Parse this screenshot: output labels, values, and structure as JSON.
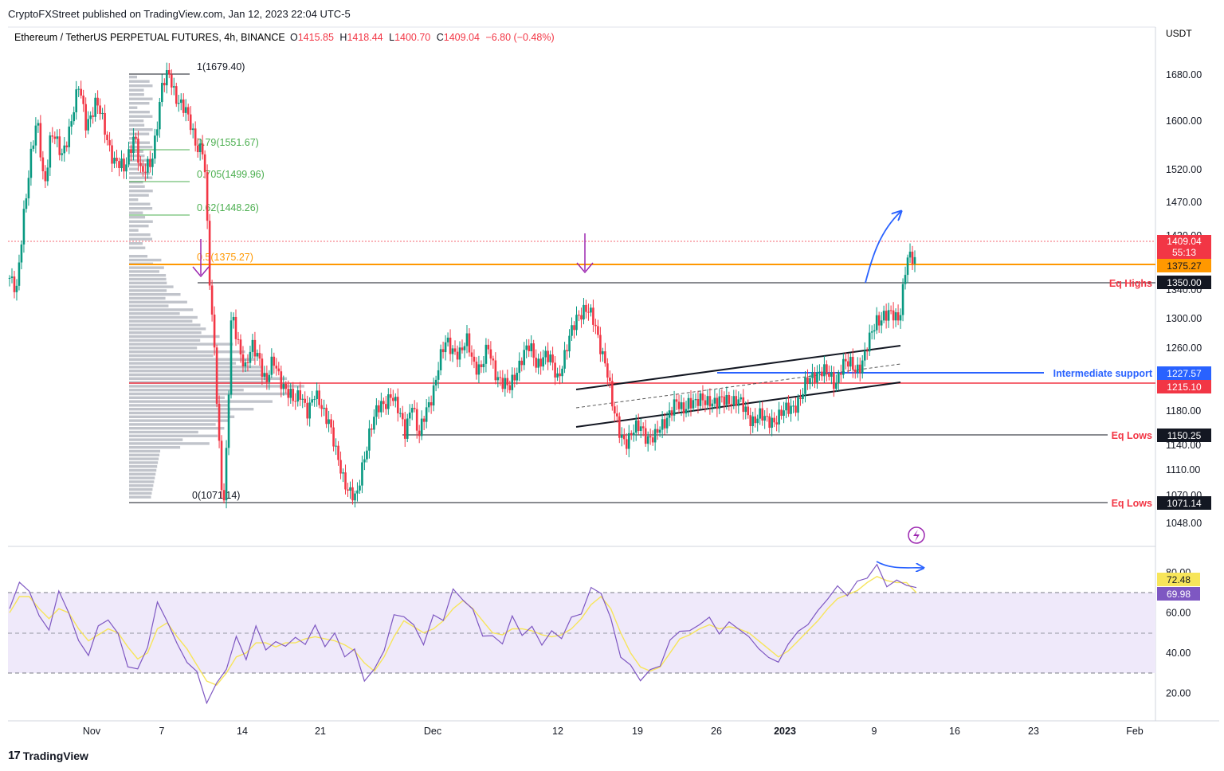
{
  "publisher_line": "CryptoFXStreet published on TradingView.com, Jan 12, 2023 22:04 UTC-5",
  "branding": "TradingView",
  "colors": {
    "up": "#089981",
    "down": "#f23645",
    "fib_green": "#4caf50",
    "fib_half": "#ff9800",
    "support_blue": "#2962ff",
    "rsi_purple": "#7e57c2",
    "rsi_ma": "#f7e55a",
    "rsi_band": "#efe9fa",
    "arrow_purple": "#9c27b0"
  },
  "chart_data": {
    "type": "candlestick",
    "symbol": "Ethereum / TetherUS PERPETUAL FUTURES",
    "timeframe": "4h",
    "exchange": "BINANCE",
    "ohlc": {
      "O": "1415.85",
      "H": "1418.44",
      "L": "1400.70",
      "C": "1409.04",
      "change": "−6.80 (−0.48%)"
    },
    "currency": "USDT",
    "price_ticks": [
      "1680.00",
      "1600.00",
      "1520.00",
      "1470.00",
      "1420.00",
      "1340.00",
      "1300.00",
      "1260.00",
      "1180.00",
      "1140.00",
      "1110.00",
      "1070.00",
      "1048.00"
    ],
    "x_ticks": [
      "Nov",
      "7",
      "14",
      "21",
      "Dec",
      "12",
      "19",
      "26",
      "2023",
      "9",
      "16",
      "23",
      "Feb"
    ],
    "ylim": [
      1040,
      1700
    ],
    "price_path": [
      [
        0,
        1390
      ],
      [
        2,
        1365
      ],
      [
        4,
        1480
      ],
      [
        6,
        1560
      ],
      [
        8,
        1610
      ],
      [
        10,
        1520
      ],
      [
        12,
        1600
      ],
      [
        15,
        1560
      ],
      [
        18,
        1620
      ],
      [
        20,
        1660
      ],
      [
        22,
        1610
      ],
      [
        25,
        1640
      ],
      [
        28,
        1590
      ],
      [
        30,
        1560
      ],
      [
        33,
        1540
      ],
      [
        36,
        1600
      ],
      [
        38,
        1530
      ],
      [
        41,
        1560
      ],
      [
        44,
        1660
      ],
      [
        46,
        1679
      ],
      [
        48,
        1650
      ],
      [
        50,
        1630
      ],
      [
        52,
        1610
      ],
      [
        54,
        1580
      ],
      [
        56,
        1570
      ],
      [
        57,
        1460
      ],
      [
        58,
        1350
      ],
      [
        59,
        1300
      ],
      [
        60,
        1200
      ],
      [
        61,
        1100
      ],
      [
        62,
        1071
      ],
      [
        63,
        1200
      ],
      [
        64,
        1340
      ],
      [
        66,
        1300
      ],
      [
        68,
        1260
      ],
      [
        70,
        1290
      ],
      [
        72,
        1280
      ],
      [
        74,
        1240
      ],
      [
        76,
        1270
      ],
      [
        78,
        1250
      ],
      [
        80,
        1230
      ],
      [
        82,
        1210
      ],
      [
        84,
        1230
      ],
      [
        86,
        1200
      ],
      [
        88,
        1220
      ],
      [
        90,
        1210
      ],
      [
        92,
        1190
      ],
      [
        94,
        1140
      ],
      [
        96,
        1110
      ],
      [
        98,
        1090
      ],
      [
        100,
        1071
      ],
      [
        102,
        1130
      ],
      [
        104,
        1180
      ],
      [
        106,
        1200
      ],
      [
        108,
        1210
      ],
      [
        110,
        1230
      ],
      [
        112,
        1200
      ],
      [
        114,
        1170
      ],
      [
        116,
        1220
      ],
      [
        118,
        1160
      ],
      [
        120,
        1200
      ],
      [
        122,
        1230
      ],
      [
        124,
        1270
      ],
      [
        126,
        1300
      ],
      [
        128,
        1290
      ],
      [
        130,
        1280
      ],
      [
        132,
        1300
      ],
      [
        134,
        1270
      ],
      [
        136,
        1260
      ],
      [
        138,
        1290
      ],
      [
        140,
        1260
      ],
      [
        142,
        1240
      ],
      [
        144,
        1230
      ],
      [
        146,
        1260
      ],
      [
        148,
        1280
      ],
      [
        150,
        1290
      ],
      [
        152,
        1270
      ],
      [
        154,
        1280
      ],
      [
        156,
        1270
      ],
      [
        158,
        1250
      ],
      [
        160,
        1280
      ],
      [
        162,
        1310
      ],
      [
        164,
        1340
      ],
      [
        166,
        1350
      ],
      [
        168,
        1330
      ],
      [
        170,
        1300
      ],
      [
        172,
        1270
      ],
      [
        174,
        1200
      ],
      [
        176,
        1170
      ],
      [
        178,
        1160
      ],
      [
        180,
        1170
      ],
      [
        182,
        1180
      ],
      [
        184,
        1165
      ],
      [
        186,
        1160
      ],
      [
        188,
        1180
      ],
      [
        190,
        1200
      ],
      [
        192,
        1210
      ],
      [
        194,
        1200
      ],
      [
        196,
        1220
      ],
      [
        198,
        1210
      ],
      [
        200,
        1215
      ],
      [
        202,
        1220
      ],
      [
        204,
        1210
      ],
      [
        206,
        1215
      ],
      [
        208,
        1220
      ],
      [
        210,
        1215
      ],
      [
        212,
        1200
      ],
      [
        214,
        1190
      ],
      [
        216,
        1195
      ],
      [
        218,
        1185
      ],
      [
        220,
        1190
      ],
      [
        222,
        1195
      ],
      [
        224,
        1200
      ],
      [
        226,
        1210
      ],
      [
        228,
        1220
      ],
      [
        230,
        1240
      ],
      [
        232,
        1255
      ],
      [
        234,
        1260
      ],
      [
        236,
        1250
      ],
      [
        238,
        1240
      ],
      [
        240,
        1270
      ],
      [
        242,
        1265
      ],
      [
        244,
        1260
      ],
      [
        246,
        1275
      ],
      [
        248,
        1300
      ],
      [
        250,
        1330
      ],
      [
        252,
        1340
      ],
      [
        254,
        1335
      ],
      [
        256,
        1330
      ],
      [
        257,
        1350
      ],
      [
        258,
        1400
      ],
      [
        259,
        1420
      ],
      [
        260,
        1415
      ],
      [
        261,
        1409
      ]
    ],
    "rsi_ticks": [
      "80.00",
      "60.00",
      "40.00",
      "20.00"
    ],
    "rsi_values": [
      62,
      75,
      71,
      58,
      52,
      70,
      61,
      45,
      40,
      52,
      58,
      48,
      35,
      30,
      45,
      63,
      58,
      42,
      38,
      28,
      18,
      22,
      35,
      45,
      40,
      50,
      45,
      42,
      47,
      44,
      48,
      50,
      47,
      46,
      42,
      38,
      30,
      28,
      45,
      55,
      62,
      50,
      48,
      55,
      60,
      68,
      70,
      58,
      52,
      45,
      48,
      55,
      52,
      50,
      47,
      48,
      50,
      55,
      62,
      70,
      72,
      55,
      40,
      32,
      28,
      30,
      35,
      45,
      52,
      50,
      55,
      57,
      50,
      55,
      52,
      48,
      42,
      38,
      35,
      45,
      50,
      55,
      60,
      68,
      72,
      70,
      74,
      79,
      82,
      75,
      74,
      76,
      72.48
    ],
    "rsi_ma_values": [
      60,
      68,
      68,
      62,
      57,
      62,
      60,
      52,
      46,
      49,
      52,
      50,
      43,
      37,
      40,
      52,
      55,
      48,
      42,
      34,
      26,
      24,
      30,
      38,
      40,
      45,
      45,
      43,
      45,
      45,
      47,
      48,
      47,
      46,
      44,
      41,
      35,
      31,
      38,
      48,
      56,
      53,
      50,
      52,
      56,
      62,
      66,
      62,
      56,
      50,
      49,
      52,
      52,
      51,
      49,
      48,
      49,
      52,
      57,
      64,
      68,
      62,
      50,
      40,
      33,
      31,
      33,
      40,
      47,
      49,
      52,
      54,
      52,
      53,
      52,
      50,
      46,
      42,
      38,
      41,
      46,
      51,
      56,
      62,
      67,
      69,
      71,
      75,
      78,
      76,
      75,
      75,
      69.98
    ],
    "rsi_last_labels": {
      "rsi": "72.48",
      "ma": "69.98"
    }
  },
  "annotations": {
    "fib_1": "1(1679.40)",
    "fib_079": "0.79(1551.67)",
    "fib_0705": "0.705(1499.96)",
    "fib_062": "0.62(1448.26)",
    "fib_05": "0.5(1375.27)",
    "fib_0": "0(1071.14)",
    "eq_highs": "Eq Highs",
    "intermediate_support": "Intermediate support",
    "eq_lows_1": "Eq Lows",
    "eq_lows_2": "Eq Lows"
  },
  "price_badges": {
    "last": "1409.04",
    "countdown": "55:13",
    "fib_half": "1375.27",
    "eq_highs": "1350.00",
    "support": "1227.57",
    "red_level": "1215.10",
    "eq_lows_1": "1150.25",
    "eq_lows_2": "1071.14"
  }
}
